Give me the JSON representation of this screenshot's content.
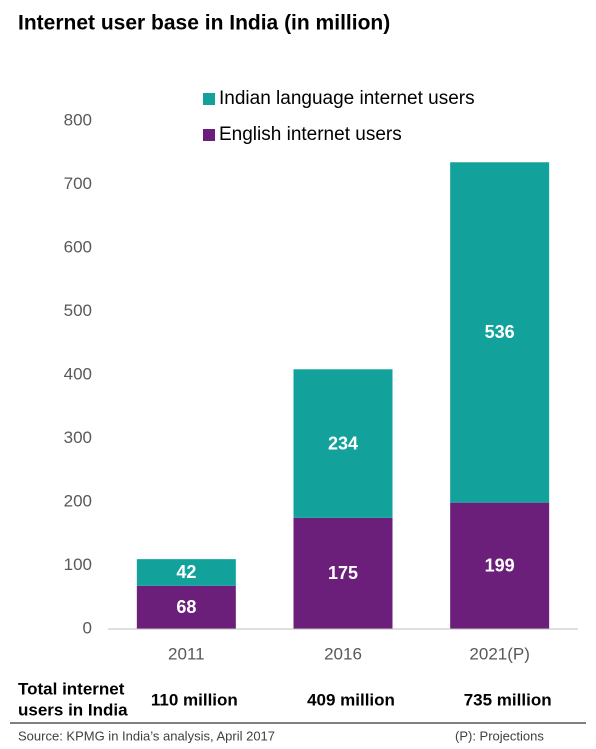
{
  "chart_data": {
    "type": "stacked_bar",
    "title": "Internet user base in India (in million)",
    "categories": [
      "2011",
      "2016",
      "2021(P)"
    ],
    "series": [
      {
        "name": "English internet users",
        "color": "#6b1f7a",
        "values": [
          68,
          175,
          199
        ]
      },
      {
        "name": "Indian language internet users",
        "color": "#12a19b",
        "values": [
          42,
          234,
          536
        ]
      }
    ],
    "ylim": [
      0,
      800
    ],
    "yticks": [
      0,
      100,
      200,
      300,
      400,
      500,
      600,
      700,
      800
    ],
    "grid": false,
    "totals": {
      "label_lines": [
        "Total internet",
        "users in India"
      ],
      "values": [
        "110 million",
        "409 million",
        "735 million"
      ]
    },
    "source": "Source: KPMG in India’s analysis, April 2017",
    "note": "(P): Projections"
  }
}
